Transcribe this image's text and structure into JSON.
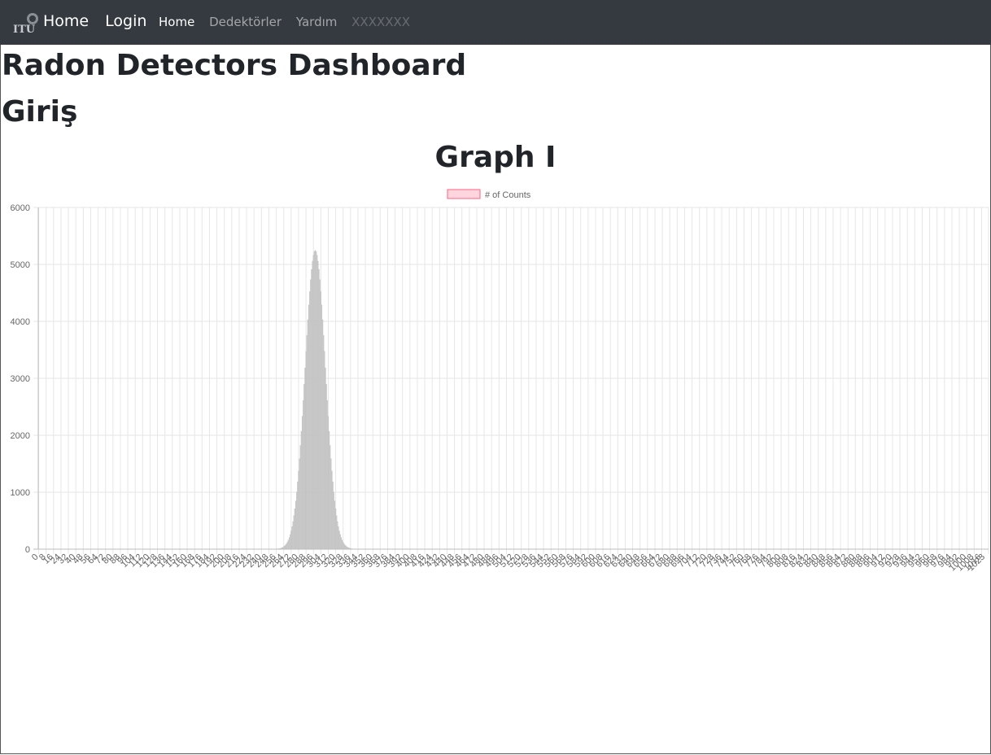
{
  "navbar": {
    "logo_text": "ITU",
    "brand_links": [
      "Home",
      "Login"
    ],
    "items": [
      {
        "label": "Home",
        "state": "active"
      },
      {
        "label": "Dedektörler",
        "state": "link"
      },
      {
        "label": "Yardım",
        "state": "link"
      },
      {
        "label": "XXXXXXX",
        "state": "disabled"
      }
    ],
    "background": "#343a40"
  },
  "page": {
    "title": "Radon Detectors Dashboard",
    "subtitle": "Giriş",
    "graph_heading": "Graph I"
  },
  "chart_data": {
    "type": "bar",
    "title": "",
    "xlabel": "",
    "ylabel": "",
    "ylim": [
      0,
      6000
    ],
    "yticks": [
      0,
      1000,
      2000,
      3000,
      4000,
      5000,
      6000
    ],
    "x_range": [
      0,
      1023
    ],
    "x_tick_step": 8,
    "grid": true,
    "legend_position": "top-center",
    "series": [
      {
        "name": "# of Counts",
        "color": "#c8c8c8",
        "legend_fill": "#ffd6dd",
        "legend_stroke": "#ff6384",
        "peak_channel": 298,
        "peak_value": 5250,
        "sigma_channels": 11
      }
    ]
  }
}
